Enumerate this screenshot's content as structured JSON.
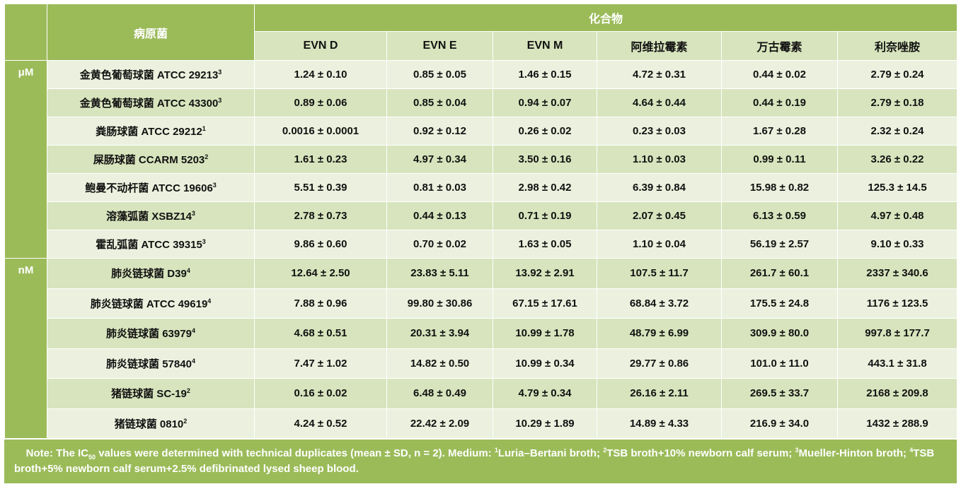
{
  "header": {
    "pathogen": "病原菌",
    "compounds_group": "化合物",
    "columns": [
      "EVN D",
      "EVN E",
      "EVN M",
      "阿维拉霉素",
      "万古霉素",
      "利奈唑胺"
    ]
  },
  "colors": {
    "header": "#9bbb59",
    "row_dark": "#d7e4bd",
    "row_light": "#ebf1de"
  },
  "groups": [
    {
      "unit": "μM",
      "rows": [
        {
          "name": "金黄色葡萄球菌 ATCC 29213",
          "sup": "3",
          "values": [
            "1.24 ± 0.10",
            "0.85 ± 0.05",
            "1.46 ± 0.15",
            "4.72 ± 0.31",
            "0.44 ± 0.02",
            "2.79 ± 0.24"
          ]
        },
        {
          "name": "金黄色葡萄球菌 ATCC 43300",
          "sup": "3",
          "values": [
            "0.89 ± 0.06",
            "0.85 ± 0.04",
            "0.94 ± 0.07",
            "4.64 ± 0.44",
            "0.44 ± 0.19",
            "2.79 ± 0.18"
          ]
        },
        {
          "name": "粪肠球菌 ATCC 29212",
          "sup": "1",
          "values": [
            "0.0016 ± 0.0001",
            "0.92 ± 0.12",
            "0.26 ± 0.02",
            "0.23 ± 0.03",
            "1.67 ± 0.28",
            "2.32 ± 0.24"
          ]
        },
        {
          "name": "屎肠球菌 CCARM 5203",
          "sup": "2",
          "values": [
            "1.61 ± 0.23",
            "4.97 ± 0.34",
            "3.50 ± 0.16",
            "1.10 ± 0.03",
            "0.99 ± 0.11",
            "3.26 ± 0.22"
          ]
        },
        {
          "name": "鲍曼不动杆菌 ATCC 19606",
          "sup": "3",
          "values": [
            "5.51 ± 0.39",
            "0.81 ± 0.03",
            "2.98 ± 0.42",
            "6.39 ± 0.84",
            "15.98 ± 0.82",
            "125.3 ± 14.5"
          ]
        },
        {
          "name": "溶藻弧菌 XSBZ14",
          "sup": "3",
          "values": [
            "2.78 ± 0.73",
            "0.44 ± 0.13",
            "0.71 ± 0.19",
            "2.07 ± 0.45",
            "6.13 ± 0.59",
            "4.97 ± 0.48"
          ]
        },
        {
          "name": "霍乱弧菌 ATCC 39315",
          "sup": "3",
          "values": [
            "9.86 ± 0.60",
            "0.70 ± 0.02",
            "1.63 ± 0.05",
            "1.10 ± 0.04",
            "56.19 ± 2.57",
            "9.10 ± 0.33"
          ]
        }
      ]
    },
    {
      "unit": "nM",
      "rows": [
        {
          "name": "肺炎链球菌 D39",
          "sup": "4",
          "values": [
            "12.64 ± 2.50",
            "23.83 ± 5.11",
            "13.92 ± 2.91",
            "107.5 ± 11.7",
            "261.7 ± 60.1",
            "2337 ± 340.6"
          ]
        },
        {
          "name": "肺炎链球菌 ATCC 49619",
          "sup": "4",
          "values": [
            "7.88 ± 0.96",
            "99.80 ± 30.86",
            "67.15 ± 17.61",
            "68.84 ± 3.72",
            "175.5 ± 24.8",
            "1176 ± 123.5"
          ]
        },
        {
          "name": "肺炎链球菌 63979",
          "sup": "4",
          "values": [
            "4.68 ± 0.51",
            "20.31 ± 3.94",
            "10.99 ± 1.78",
            "48.79 ± 6.99",
            "309.9 ± 80.0",
            "997.8 ± 177.7"
          ]
        },
        {
          "name": "肺炎链球菌 57840",
          "sup": "4",
          "values": [
            "7.47 ± 1.02",
            "14.82 ± 0.50",
            "10.99 ± 0.34",
            "29.77 ± 0.86",
            "101.0 ± 11.0",
            "443.1 ± 31.8"
          ]
        },
        {
          "name": "猪链球菌 SC-19",
          "sup": "2",
          "values": [
            "0.16 ± 0.02",
            "6.48 ± 0.49",
            "4.79 ± 0.34",
            "26.16 ± 2.11",
            "269.5 ± 33.7",
            "2168 ± 209.8"
          ]
        },
        {
          "name": "猪链球菌 0810",
          "sup": "2",
          "values": [
            "4.24 ± 0.52",
            "22.42 ± 2.09",
            "10.29 ± 1.89",
            "14.89 ± 4.33",
            "216.9 ± 34.0",
            "1432 ± 288.9"
          ]
        }
      ]
    }
  ],
  "note": {
    "p1": "Note: The IC",
    "p1_sub": "50",
    "p2": " values were determined with technical duplicates (mean ± SD, n = 2). Medium: ",
    "s1": "1",
    "m1": "Luria–Bertani broth; ",
    "s2": "2",
    "m2": "TSB broth+10% newborn calf serum; ",
    "s3": "3",
    "m3": "Mueller-Hinton broth; ",
    "s4": "4",
    "m4": "TSB broth+5% newborn calf serum+2.5% defibrinated lysed sheep blood."
  }
}
